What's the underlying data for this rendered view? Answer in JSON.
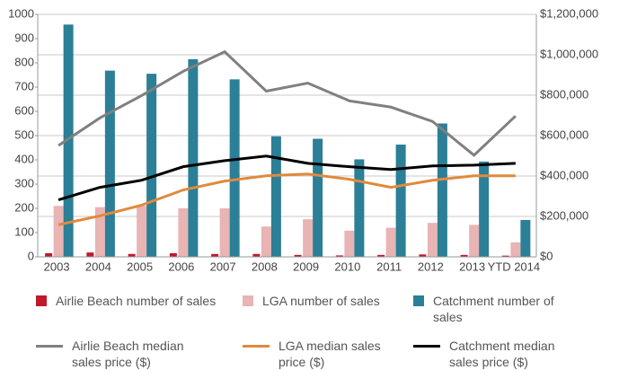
{
  "chart_data": {
    "type": "bar",
    "categories": [
      "2003",
      "2004",
      "2005",
      "2006",
      "2007",
      "2008",
      "2009",
      "2010",
      "2011",
      "2012",
      "2013",
      "YTD 2014"
    ],
    "ylim": [
      0,
      1000
    ],
    "yticks": [
      0,
      100,
      200,
      300,
      400,
      500,
      600,
      700,
      800,
      900,
      1000
    ],
    "y2lim": [
      0,
      1200000
    ],
    "y2ticks": [
      {
        "value": 0,
        "label": "$0"
      },
      {
        "value": 200000,
        "label": "$200,000"
      },
      {
        "value": 400000,
        "label": "$400,000"
      },
      {
        "value": 600000,
        "label": "$600,000"
      },
      {
        "value": 800000,
        "label": "$800,000"
      },
      {
        "value": 1000000,
        "label": "$1,000,000"
      },
      {
        "value": 1200000,
        "label": "$1,200,000"
      }
    ],
    "grid": true,
    "legend": "bottom",
    "series": [
      {
        "name": "Airlie Beach number of sales",
        "type": "bar",
        "color": "#c0192b",
        "values": [
          15,
          18,
          12,
          15,
          12,
          12,
          8,
          6,
          8,
          10,
          8,
          5
        ]
      },
      {
        "name": "LGA number of sales",
        "type": "bar",
        "color": "#e8b4b4",
        "values": [
          210,
          205,
          210,
          200,
          200,
          125,
          155,
          108,
          120,
          140,
          132,
          60
        ]
      },
      {
        "name": "Catchment number of sales",
        "type": "bar",
        "color": "#2b7f96",
        "values": [
          958,
          768,
          755,
          815,
          732,
          497,
          487,
          402,
          463,
          550,
          393,
          152
        ]
      },
      {
        "name": "Airlie Beach median sales price ($)",
        "type": "line",
        "axis": "y2",
        "color": "#808080",
        "values": [
          551000,
          688000,
          798000,
          918000,
          1015000,
          820000,
          860000,
          772000,
          741000,
          670000,
          503000,
          697000
        ]
      },
      {
        "name": "LGA median sales price ($)",
        "type": "line",
        "axis": "y2",
        "color": "#e08a3c",
        "values": [
          159000,
          203000,
          256000,
          331000,
          375000,
          401000,
          410000,
          384000,
          344000,
          379000,
          401000,
          401000
        ]
      },
      {
        "name": "Catchment median sales price ($)",
        "type": "line",
        "axis": "y2",
        "color": "#000000",
        "values": [
          282000,
          344000,
          379000,
          446000,
          476000,
          499000,
          463000,
          446000,
          432000,
          450000,
          454000,
          463000
        ]
      }
    ]
  }
}
